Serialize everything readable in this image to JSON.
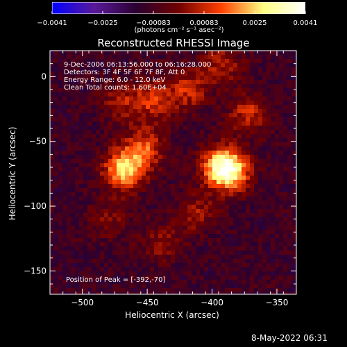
{
  "chart_data": {
    "type": "heatmap",
    "title": "Reconstructed RHESSI Image",
    "xlabel": "Heliocentric X (arcsec)",
    "ylabel": "Heliocentric Y (arcsec)",
    "xlim": [
      -525,
      -335
    ],
    "ylim": [
      -168,
      20
    ],
    "x_ticks": [
      -500,
      -450,
      -400,
      -350
    ],
    "y_ticks": [
      0,
      -50,
      -100,
      -150
    ],
    "colorbar": {
      "range": [
        -0.0041,
        0.0041
      ],
      "ticks": [
        "-0.0041",
        "-0.0025",
        "-0.00083",
        "0.00083",
        "0.0025",
        "0.0041"
      ],
      "units_label": "(photons cm⁻² s⁻¹ asec⁻²)",
      "colors": [
        "#0000ff",
        "#5a1a9a",
        "#2a0030",
        "#700000",
        "#ff4000",
        "#ffff80",
        "#ffffff"
      ]
    },
    "annotations": [
      "9-Dec-2006 06:13:56.000 to 06:16:28.000",
      "Detectors: 3F 4F 5F 6F 7F 8F, Att 0",
      "Energy Range: 6.0 - 12.0 keV",
      "Clean     Total counts: 1.60E+04"
    ],
    "peak_label": "Position of Peak = [-392,-70]",
    "sources": [
      {
        "x": -392,
        "y": -70,
        "peak": 0.0041
      },
      {
        "x": -468,
        "y": -72,
        "peak": 0.0036
      },
      {
        "x": -452,
        "y": -55,
        "peak": 0.0022
      },
      {
        "x": -445,
        "y": -18,
        "peak": 0.002
      },
      {
        "x": -418,
        "y": -10,
        "peak": 0.0018
      },
      {
        "x": -470,
        "y": -20,
        "peak": 0.0014
      },
      {
        "x": -372,
        "y": -28,
        "peak": 0.0018
      },
      {
        "x": -383,
        "y": -75,
        "peak": 0.0017
      },
      {
        "x": -440,
        "y": -128,
        "peak": 0.0012
      },
      {
        "x": -480,
        "y": -110,
        "peak": 0.001
      },
      {
        "x": -412,
        "y": -105,
        "peak": 0.0013
      },
      {
        "x": -392,
        "y": 10,
        "peak": 0.0015
      }
    ]
  },
  "footer": {
    "timestamp": "8-May-2022 06:31"
  }
}
